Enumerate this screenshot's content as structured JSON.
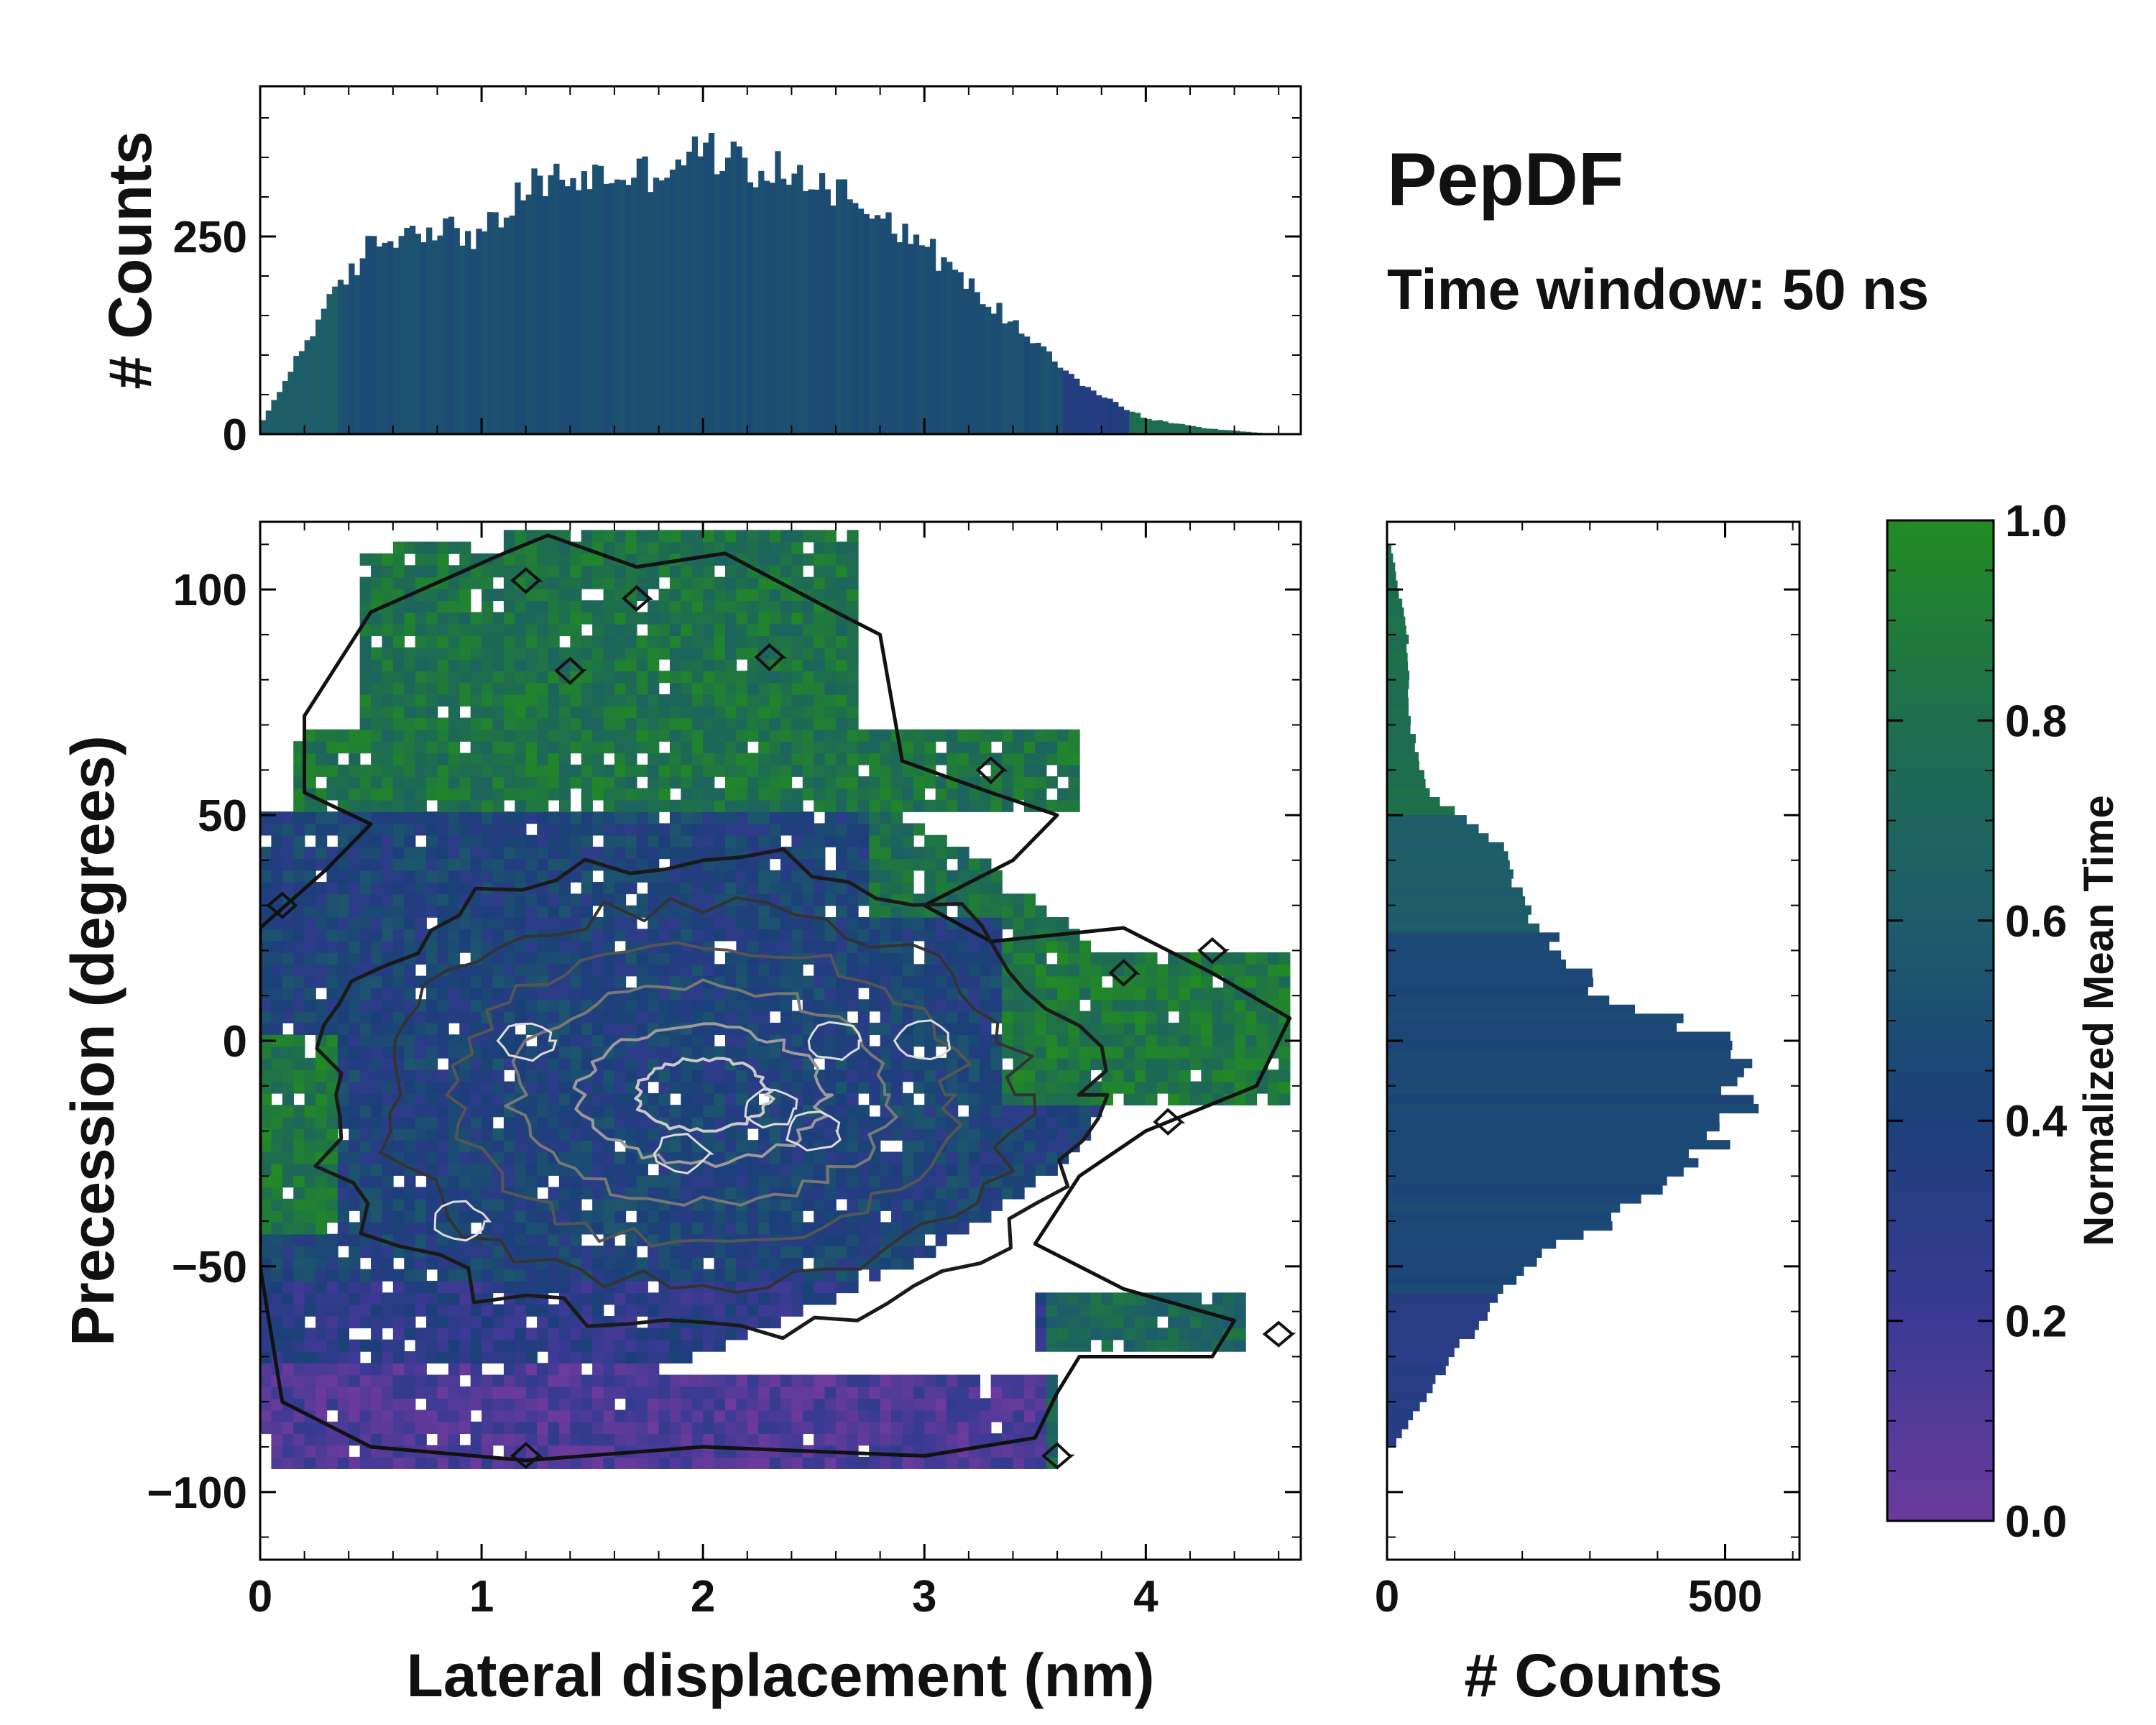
{
  "chart_data": [
    {
      "id": "top_hist",
      "type": "bar",
      "role": "marginal histogram of lateral displacement",
      "ylabel": "# Counts",
      "xlim": [
        0,
        4.7
      ],
      "ylim": [
        0,
        440
      ],
      "yticks": [
        "0",
        "250"
      ],
      "ytick_values": [
        0,
        250
      ],
      "bin_width": 0.025,
      "x": [
        0.0,
        0.25,
        0.5,
        0.75,
        1.0,
        1.25,
        1.5,
        1.75,
        2.0,
        2.25,
        2.5,
        2.75,
        3.0,
        3.25,
        3.5,
        3.75,
        4.0,
        4.25,
        4.5,
        4.6
      ],
      "values": [
        10,
        140,
        240,
        265,
        250,
        320,
        325,
        330,
        360,
        335,
        325,
        290,
        240,
        175,
        120,
        55,
        20,
        8,
        2,
        0
      ],
      "peak_value": 385
    },
    {
      "id": "main_heatmap",
      "type": "heatmap",
      "xlabel": "Lateral displacement (nm)",
      "ylabel": "Precession (degrees)",
      "xlim": [
        0,
        4.7
      ],
      "ylim": [
        -115,
        115
      ],
      "xticks": [
        "0",
        "1",
        "2",
        "3",
        "4"
      ],
      "xtick_values": [
        0,
        1,
        2,
        3,
        4
      ],
      "yticks": [
        "100",
        "50",
        "0",
        "−50",
        "−100"
      ],
      "ytick_values": [
        100,
        50,
        0,
        -50,
        -100
      ],
      "color_quantity": "Normalized Mean Time",
      "has_density_contours": true
    },
    {
      "id": "right_hist",
      "type": "bar",
      "orientation": "horizontal",
      "role": "marginal histogram of precession",
      "xlabel": "# Counts",
      "xlim": [
        0,
        610
      ],
      "xticks": [
        "0",
        "500"
      ],
      "xtick_values": [
        0,
        500
      ],
      "bin_width": 2,
      "y": [
        110,
        90,
        70,
        55,
        45,
        30,
        20,
        10,
        0,
        -10,
        -20,
        -30,
        -40,
        -50,
        -60,
        -70,
        -80,
        -90
      ],
      "values": [
        5,
        30,
        35,
        60,
        160,
        200,
        260,
        320,
        500,
        520,
        510,
        420,
        330,
        200,
        150,
        100,
        50,
        10
      ],
      "peak_value": 555
    }
  ],
  "title": "PepDF",
  "subtitle": "Time window: 50 ns",
  "colorbar": {
    "label": "Normalized Mean Time",
    "ticks": [
      "0.0",
      "0.2",
      "0.4",
      "0.6",
      "0.8",
      "1.0"
    ],
    "tick_values": [
      0.0,
      0.2,
      0.4,
      0.6,
      0.8,
      1.0
    ],
    "colors": [
      "#6a3a9c",
      "#3b3a94",
      "#1c3f7a",
      "#1d5c6a",
      "#1e6e4e",
      "#228b22"
    ]
  }
}
